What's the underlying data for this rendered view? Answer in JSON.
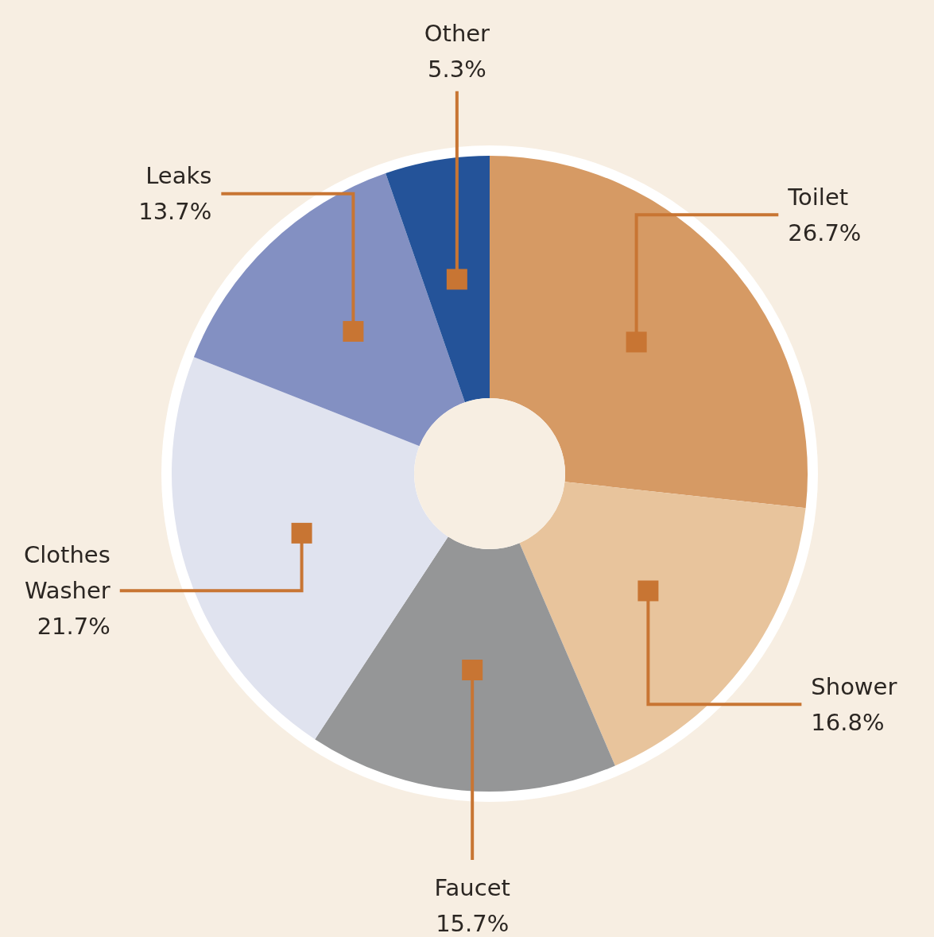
{
  "chart_data": {
    "type": "donut",
    "categories": [
      "Toilet",
      "Shower",
      "Faucet",
      "Clothes Washer",
      "Leaks",
      "Other"
    ],
    "values": [
      26.7,
      16.8,
      15.7,
      21.7,
      13.7,
      5.3
    ],
    "value_labels": [
      "26.7%",
      "16.8%",
      "15.7%",
      "21.7%",
      "13.7%",
      "5.3%"
    ],
    "colors": [
      "#d69a64",
      "#e8c49c",
      "#959697",
      "#e0e3ef",
      "#8390c2",
      "#245399"
    ]
  }
}
